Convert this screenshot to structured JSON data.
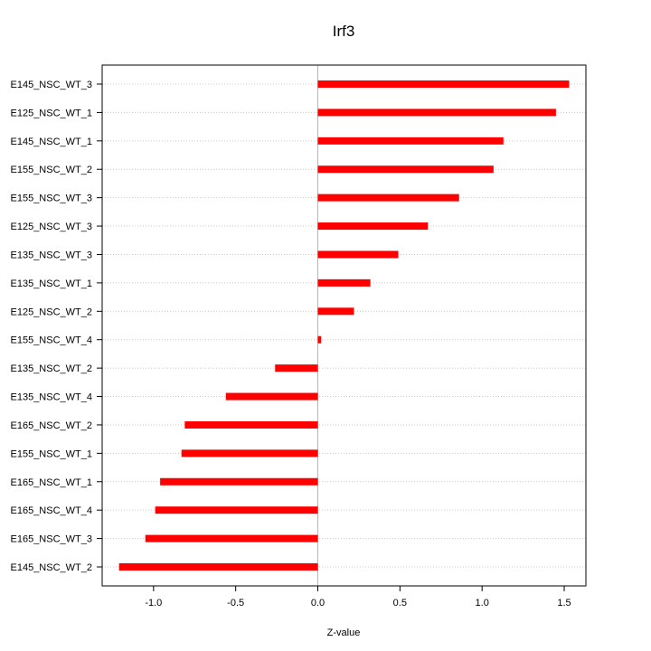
{
  "chart_data": {
    "type": "bar",
    "orientation": "horizontal",
    "title": "Irf3",
    "xlabel": "Z-value",
    "ylabel": "",
    "xlim": [
      -1.3,
      1.65
    ],
    "xticks": [
      -1.0,
      -0.5,
      0.0,
      0.5,
      1.0,
      1.5
    ],
    "xtick_labels": [
      "-1.0",
      "-0.5",
      "0.0",
      "0.5",
      "1.0",
      "1.5"
    ],
    "grid": "horizontal-dotted",
    "reference_line": {
      "x": 0,
      "color": "#7fdc7f"
    },
    "bar_color": "#ff0000",
    "categories": [
      "E145_NSC_WT_3",
      "E125_NSC_WT_1",
      "E145_NSC_WT_1",
      "E155_NSC_WT_2",
      "E155_NSC_WT_3",
      "E125_NSC_WT_3",
      "E135_NSC_WT_3",
      "E135_NSC_WT_1",
      "E125_NSC_WT_2",
      "E155_NSC_WT_4",
      "E135_NSC_WT_2",
      "E135_NSC_WT_4",
      "E165_NSC_WT_2",
      "E155_NSC_WT_1",
      "E165_NSC_WT_1",
      "E165_NSC_WT_4",
      "E165_NSC_WT_3",
      "E145_NSC_WT_2"
    ],
    "values": [
      1.53,
      1.45,
      1.13,
      1.07,
      0.86,
      0.67,
      0.49,
      0.32,
      0.22,
      0.02,
      -0.26,
      -0.56,
      -0.81,
      -0.83,
      -0.96,
      -0.99,
      -1.05,
      -1.21
    ]
  }
}
